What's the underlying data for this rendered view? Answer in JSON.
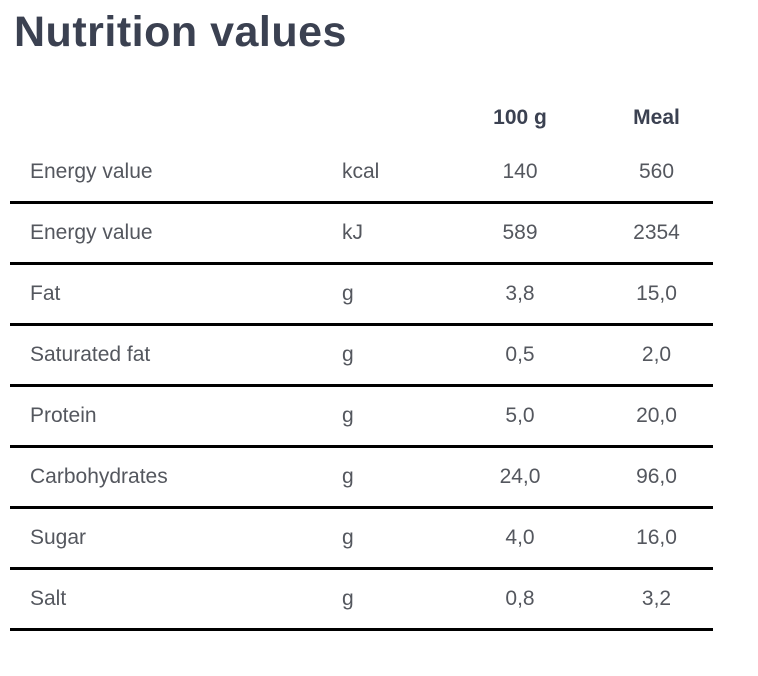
{
  "page": {
    "title": "Nutrition values"
  },
  "colors": {
    "title_text": "#3b4151",
    "header_text": "#3b4151",
    "body_text": "#54575e",
    "row_border": "#000000",
    "background": "#ffffff"
  },
  "table": {
    "headers": {
      "name": "",
      "unit": "",
      "per100g": "100 g",
      "meal": "Meal"
    },
    "rows": [
      {
        "name": "Energy value",
        "unit": "kcal",
        "per100g": "140",
        "meal": "560"
      },
      {
        "name": "Energy value",
        "unit": "kJ",
        "per100g": "589",
        "meal": "2354"
      },
      {
        "name": "Fat",
        "unit": "g",
        "per100g": "3,8",
        "meal": "15,0"
      },
      {
        "name": "Saturated fat",
        "unit": "g",
        "per100g": "0,5",
        "meal": "2,0"
      },
      {
        "name": "Protein",
        "unit": "g",
        "per100g": "5,0",
        "meal": "20,0"
      },
      {
        "name": "Carbohydrates",
        "unit": "g",
        "per100g": "24,0",
        "meal": "96,0"
      },
      {
        "name": "Sugar",
        "unit": "g",
        "per100g": "4,0",
        "meal": "16,0"
      },
      {
        "name": "Salt",
        "unit": "g",
        "per100g": "0,8",
        "meal": "3,2"
      }
    ]
  }
}
